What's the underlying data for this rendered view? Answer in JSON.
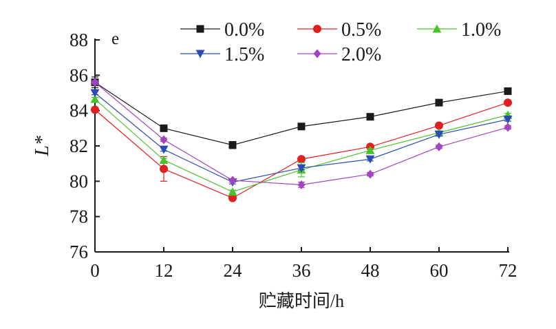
{
  "chart_data": {
    "type": "line",
    "panel_label": "e",
    "xlabel": "贮藏时间/h",
    "ylabel": "L*",
    "x": [
      0,
      12,
      24,
      36,
      48,
      60,
      72
    ],
    "xticks": [
      "0",
      "12",
      "24",
      "36",
      "48",
      "60",
      "72"
    ],
    "yticks": [
      "76",
      "78",
      "80",
      "82",
      "84",
      "86",
      "88"
    ],
    "xlim": [
      0,
      72
    ],
    "ylim": [
      76,
      88
    ],
    "grid": false,
    "legend_position": "top",
    "series": [
      {
        "name": "0.0%",
        "color": "#1a1a1a",
        "marker": "square",
        "values": [
          85.6,
          83.0,
          82.05,
          83.1,
          83.65,
          84.45,
          85.1
        ],
        "errors": [
          0.3,
          0.15,
          0.2,
          0.15,
          0.1,
          0.15,
          0.1
        ]
      },
      {
        "name": "0.5%",
        "color": "#e02020",
        "marker": "circle",
        "values": [
          84.05,
          80.7,
          79.05,
          81.25,
          81.95,
          83.15,
          84.45
        ],
        "errors": [
          0.1,
          0.7,
          0.1,
          0.1,
          0.1,
          0.1,
          0.1
        ]
      },
      {
        "name": "1.0%",
        "color": "#4cc22a",
        "marker": "triangle-up",
        "values": [
          84.65,
          81.2,
          79.4,
          80.65,
          81.75,
          82.75,
          83.75
        ],
        "errors": [
          0.1,
          0.1,
          0.1,
          0.4,
          0.1,
          0.1,
          0.1
        ]
      },
      {
        "name": "1.5%",
        "color": "#2b4db3",
        "marker": "triangle-down",
        "values": [
          85.0,
          81.8,
          79.95,
          80.75,
          81.25,
          82.65,
          83.5
        ],
        "errors": [
          0.1,
          0.1,
          0.1,
          0.1,
          0.1,
          0.1,
          0.1
        ]
      },
      {
        "name": "2.0%",
        "color": "#a244c0",
        "marker": "diamond",
        "values": [
          85.6,
          82.35,
          80.05,
          79.8,
          80.4,
          81.95,
          83.05
        ],
        "errors": [
          0.1,
          0.1,
          0.1,
          0.15,
          0.1,
          0.1,
          0.1
        ]
      }
    ]
  }
}
